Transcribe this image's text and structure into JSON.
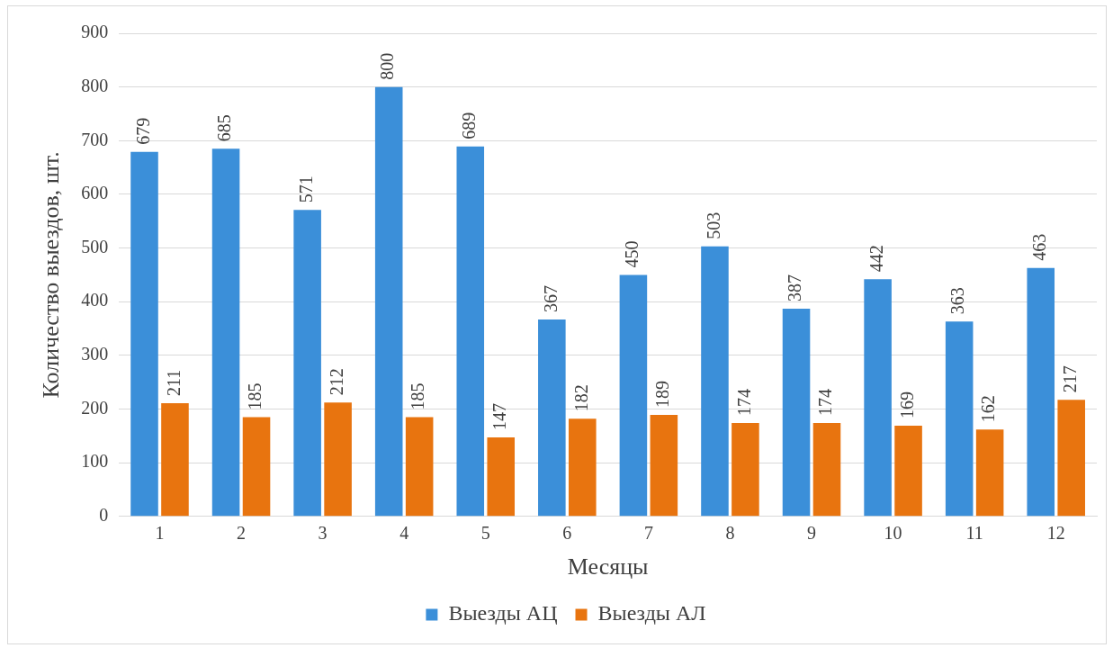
{
  "chart_data": {
    "type": "bar",
    "xlabel": "Месяцы",
    "ylabel": "Количество выездов, шт.",
    "categories": [
      "1",
      "2",
      "3",
      "4",
      "5",
      "6",
      "7",
      "8",
      "9",
      "10",
      "11",
      "12"
    ],
    "series": [
      {
        "name": "Выезды АЦ",
        "color": "#3b8fd9",
        "values": [
          679,
          685,
          571,
          800,
          689,
          367,
          450,
          503,
          387,
          442,
          363,
          463
        ]
      },
      {
        "name": "Выезды АЛ",
        "color": "#e8740f",
        "values": [
          211,
          185,
          212,
          185,
          147,
          182,
          189,
          174,
          174,
          169,
          162,
          217
        ]
      }
    ],
    "ylim": [
      0,
      900
    ],
    "yticks": [
      0,
      100,
      200,
      300,
      400,
      500,
      600,
      700,
      800,
      900
    ],
    "grid": "y",
    "legend": "bottom",
    "data_labels": true
  }
}
